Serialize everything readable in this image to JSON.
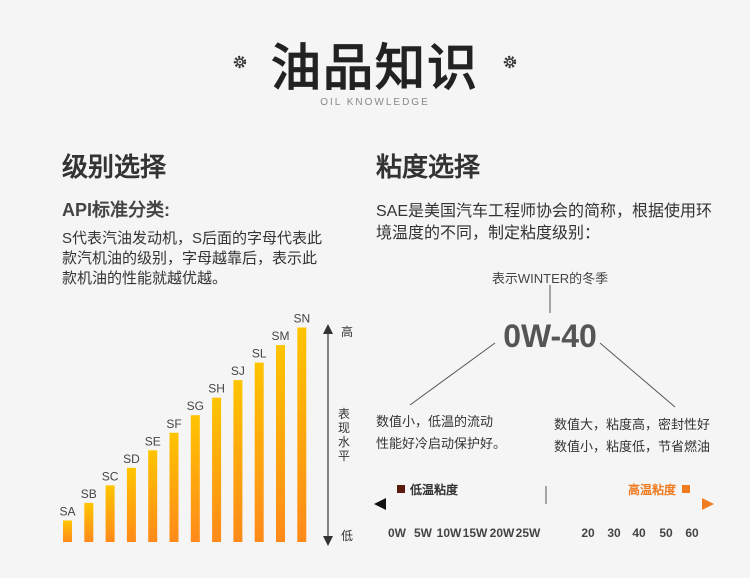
{
  "header": {
    "title": "油品知识",
    "subtitle": "OIL KNOWLEDGE"
  },
  "left": {
    "heading": "级别选择",
    "api_title": "API标准分类:",
    "api_desc": "S代表汽油发动机，S后面的字母代表此款汽机油的级别，字母越靠后，表示此款机油的性能就越优越。"
  },
  "chart_data": {
    "type": "bar",
    "categories": [
      "SA",
      "SB",
      "SC",
      "SD",
      "SE",
      "SF",
      "SG",
      "SH",
      "SJ",
      "SL",
      "SM",
      "SN"
    ],
    "values": [
      1,
      2,
      3,
      4,
      5,
      6,
      7,
      8,
      9,
      10,
      11,
      12
    ],
    "ylabel": "表现水平",
    "y_high_label": "高",
    "y_low_label": "低",
    "ylim": [
      0,
      12
    ],
    "colors": {
      "bar_top": "#ffc400",
      "bar_bottom": "#ff8a1a"
    },
    "grid": false,
    "legend": "none"
  },
  "right": {
    "heading": "粘度选择",
    "sae_desc": "SAE是美国汽车工程师协会的简称，根据使用环境温度的不同，制定粘度级别：",
    "winter_note": "表示WINTER的冬季",
    "viscosity_grade": "0W-40",
    "low_num_desc_1": "数值小，低温的流动",
    "low_num_desc_2": "性能好冷启动保护好。",
    "high_num_desc_1": "数值大，粘度高，密封性好",
    "high_num_desc_2": "数值小，粘度低，节省燃油",
    "low_visc_label": "低温粘度",
    "high_visc_label": "高温粘度",
    "scale_low": [
      "0W",
      "5W",
      "10W",
      "15W",
      "20W",
      "25W"
    ],
    "scale_high": [
      "20",
      "30",
      "40",
      "50",
      "60"
    ],
    "colors": {
      "low": "#5a1a10",
      "high": "#f07c22"
    }
  }
}
